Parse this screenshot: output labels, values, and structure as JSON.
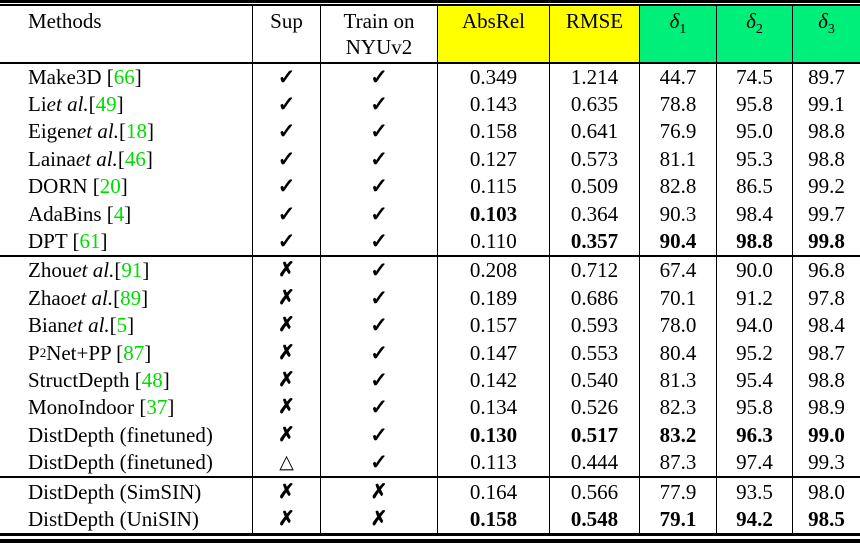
{
  "colors": {
    "header_yellow": "#FFFF00",
    "header_green": "#00EE7A",
    "citation_green": "#00DC00"
  },
  "header": {
    "columns": [
      {
        "id": "methods",
        "lines": [
          "Methods"
        ]
      },
      {
        "id": "sup",
        "lines": [
          "Sup"
        ]
      },
      {
        "id": "train",
        "lines": [
          "Train on",
          "NYUv2"
        ]
      },
      {
        "id": "absrel",
        "lines": [
          "AbsRel"
        ],
        "bg": "yellow"
      },
      {
        "id": "rmse",
        "lines": [
          "RMSE"
        ],
        "bg": "yellow"
      },
      {
        "id": "d1",
        "math": {
          "base": "δ",
          "sub": "1"
        },
        "bg": "green"
      },
      {
        "id": "d2",
        "math": {
          "base": "δ",
          "sub": "2"
        },
        "bg": "green"
      },
      {
        "id": "d3",
        "math": {
          "base": "δ",
          "sub": "3"
        },
        "bg": "green"
      }
    ]
  },
  "marks": {
    "check": "✓",
    "cross": "✗",
    "triangle": "△"
  },
  "sections": [
    {
      "rows": [
        {
          "method": "Make3D [66]",
          "sup": "check",
          "train": "check",
          "absrel": "0.349",
          "rmse": "1.214",
          "d1": "44.7",
          "d2": "74.5",
          "d3": "89.7",
          "bold": []
        },
        {
          "method": "Li _et al._ [49]",
          "sup": "check",
          "train": "check",
          "absrel": "0.143",
          "rmse": "0.635",
          "d1": "78.8",
          "d2": "95.8",
          "d3": "99.1",
          "bold": []
        },
        {
          "method": "Eigen _et al._ [18]",
          "sup": "check",
          "train": "check",
          "absrel": "0.158",
          "rmse": "0.641",
          "d1": "76.9",
          "d2": "95.0",
          "d3": "98.8",
          "bold": []
        },
        {
          "method": "Laina _et al._ [46]",
          "sup": "check",
          "train": "check",
          "absrel": "0.127",
          "rmse": "0.573",
          "d1": "81.1",
          "d2": "95.3",
          "d3": "98.8",
          "bold": []
        },
        {
          "method": "DORN [20]",
          "sup": "check",
          "train": "check",
          "absrel": "0.115",
          "rmse": "0.509",
          "d1": "82.8",
          "d2": "86.5",
          "d3": "99.2",
          "bold": []
        },
        {
          "method": "AdaBins [4]",
          "sup": "check",
          "train": "check",
          "absrel": "0.103",
          "rmse": "0.364",
          "d1": "90.3",
          "d2": "98.4",
          "d3": "99.7",
          "bold": [
            "absrel"
          ]
        },
        {
          "method": "DPT [61]",
          "sup": "check",
          "train": "check",
          "absrel": "0.110",
          "rmse": "0.357",
          "d1": "90.4",
          "d2": "98.8",
          "d3": "99.8",
          "bold": [
            "rmse",
            "d1",
            "d2",
            "d3"
          ]
        }
      ]
    },
    {
      "rows": [
        {
          "method": "Zhou _et al._ [91]",
          "sup": "cross",
          "train": "check",
          "absrel": "0.208",
          "rmse": "0.712",
          "d1": "67.4",
          "d2": "90.0",
          "d3": "96.8",
          "bold": []
        },
        {
          "method": "Zhao _et al._ [89]",
          "sup": "cross",
          "train": "check",
          "absrel": "0.189",
          "rmse": "0.686",
          "d1": "70.1",
          "d2": "91.2",
          "d3": "97.8",
          "bold": []
        },
        {
          "method": "Bian _et al._ [5]",
          "sup": "cross",
          "train": "check",
          "absrel": "0.157",
          "rmse": "0.593",
          "d1": "78.0",
          "d2": "94.0",
          "d3": "98.4",
          "bold": []
        },
        {
          "method": "P^2Net+PP [87]",
          "sup": "cross",
          "train": "check",
          "absrel": "0.147",
          "rmse": "0.553",
          "d1": "80.4",
          "d2": "95.2",
          "d3": "98.7",
          "bold": []
        },
        {
          "method": "StructDepth [48]",
          "sup": "cross",
          "train": "check",
          "absrel": "0.142",
          "rmse": "0.540",
          "d1": "81.3",
          "d2": "95.4",
          "d3": "98.8",
          "bold": []
        },
        {
          "method": "MonoIndoor [37]",
          "sup": "cross",
          "train": "check",
          "absrel": "0.134",
          "rmse": "0.526",
          "d1": "82.3",
          "d2": "95.8",
          "d3": "98.9",
          "bold": []
        },
        {
          "method": "DistDepth (finetuned)",
          "sup": "cross",
          "train": "check",
          "absrel": "0.130",
          "rmse": "0.517",
          "d1": "83.2",
          "d2": "96.3",
          "d3": "99.0",
          "bold": [
            "absrel",
            "rmse",
            "d1",
            "d2",
            "d3"
          ]
        },
        {
          "method": "DistDepth (finetuned)",
          "sup": "triangle",
          "train": "check",
          "absrel": "0.113",
          "rmse": "0.444",
          "d1": "87.3",
          "d2": "97.4",
          "d3": "99.3",
          "bold": []
        }
      ]
    },
    {
      "rows": [
        {
          "method": "DistDepth (SimSIN)",
          "sup": "cross",
          "train": "cross",
          "absrel": "0.164",
          "rmse": "0.566",
          "d1": "77.9",
          "d2": "93.5",
          "d3": "98.0",
          "bold": []
        },
        {
          "method": "DistDepth (UniSIN)",
          "sup": "cross",
          "train": "cross",
          "absrel": "0.158",
          "rmse": "0.548",
          "d1": "79.1",
          "d2": "94.2",
          "d3": "98.5",
          "bold": [
            "absrel",
            "rmse",
            "d1",
            "d2",
            "d3"
          ]
        }
      ]
    }
  ]
}
